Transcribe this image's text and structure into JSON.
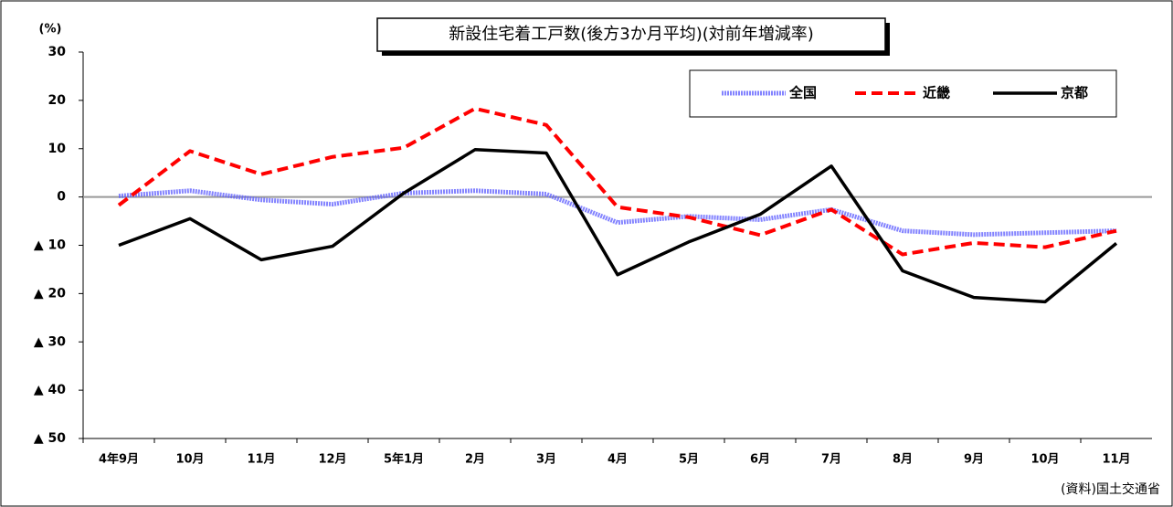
{
  "chart_data": {
    "type": "line",
    "title": "新設住宅着工戸数(後方3か月平均)(対前年増減率)",
    "y_unit": "(%)",
    "source": "(資料)国土交通省",
    "categories": [
      "4年9月",
      "10月",
      "11月",
      "12月",
      "5年1月",
      "2月",
      "3月",
      "4月",
      "5月",
      "6月",
      "7月",
      "8月",
      "9月",
      "10月",
      "11月"
    ],
    "series": [
      {
        "name": "全国",
        "color": "#5a5aff",
        "style": "dotted",
        "values": [
          0.2,
          1.3,
          -0.6,
          -1.5,
          0.8,
          1.3,
          0.6,
          -5.3,
          -4.0,
          -4.7,
          -2.6,
          -7.0,
          -7.8,
          -7.4,
          -7.0
        ]
      },
      {
        "name": "近畿",
        "color": "#ff0000",
        "style": "dashed",
        "values": [
          -1.7,
          9.5,
          4.7,
          8.3,
          10.2,
          18.3,
          14.9,
          -2.1,
          -4.2,
          -7.9,
          -2.6,
          -11.9,
          -9.5,
          -10.4,
          -7.0
        ]
      },
      {
        "name": "京都",
        "color": "#000000",
        "style": "solid",
        "values": [
          -10.0,
          -4.5,
          -13.0,
          -10.2,
          0.8,
          9.8,
          9.1,
          -16.1,
          -9.3,
          -3.6,
          6.4,
          -15.3,
          -20.8,
          -21.7,
          -9.6
        ]
      }
    ],
    "ylim": [
      -50,
      30
    ],
    "yticks": [
      {
        "value": -50,
        "label": "▲ 50"
      },
      {
        "value": -40,
        "label": "▲ 40"
      },
      {
        "value": -30,
        "label": "▲ 30"
      },
      {
        "value": -20,
        "label": "▲ 20"
      },
      {
        "value": -10,
        "label": "▲ 10"
      },
      0,
      10,
      20,
      30
    ],
    "zero_line": true,
    "legend": "top-right"
  }
}
